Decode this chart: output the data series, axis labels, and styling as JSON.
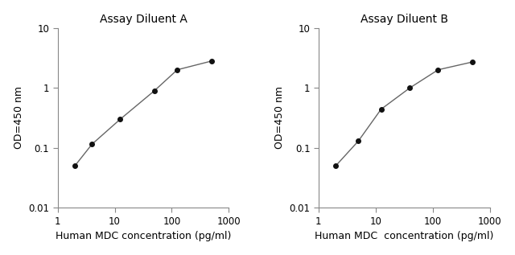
{
  "chart_A": {
    "title": "Assay Diluent A",
    "x": [
      2,
      4,
      12.5,
      50,
      125,
      500
    ],
    "y": [
      0.05,
      0.115,
      0.3,
      0.9,
      2.0,
      2.8
    ],
    "xlabel": "Human MDC concentration (pg/ml)",
    "ylabel": "OD=450 nm",
    "xlim": [
      1,
      1000
    ],
    "ylim": [
      0.01,
      10
    ]
  },
  "chart_B": {
    "title": "Assay Diluent B",
    "x": [
      2,
      5,
      12.5,
      40,
      125,
      500
    ],
    "y": [
      0.05,
      0.13,
      0.44,
      1.0,
      2.0,
      2.7
    ],
    "xlabel": "Human MDC  concentration (pg/ml)",
    "ylabel": "OD=450 nm",
    "xlim": [
      1,
      1000
    ],
    "ylim": [
      0.01,
      10
    ]
  },
  "line_color": "#666666",
  "marker_color": "#111111",
  "background_color": "#ffffff",
  "title_fontsize": 10,
  "label_fontsize": 9,
  "tick_fontsize": 8.5,
  "ytick_labels": [
    "0.01",
    "0.1",
    "1",
    "10"
  ],
  "ytick_values": [
    0.01,
    0.1,
    1,
    10
  ],
  "xtick_labels": [
    "1",
    "10",
    "100",
    "1000"
  ],
  "xtick_values": [
    1,
    10,
    100,
    1000
  ]
}
